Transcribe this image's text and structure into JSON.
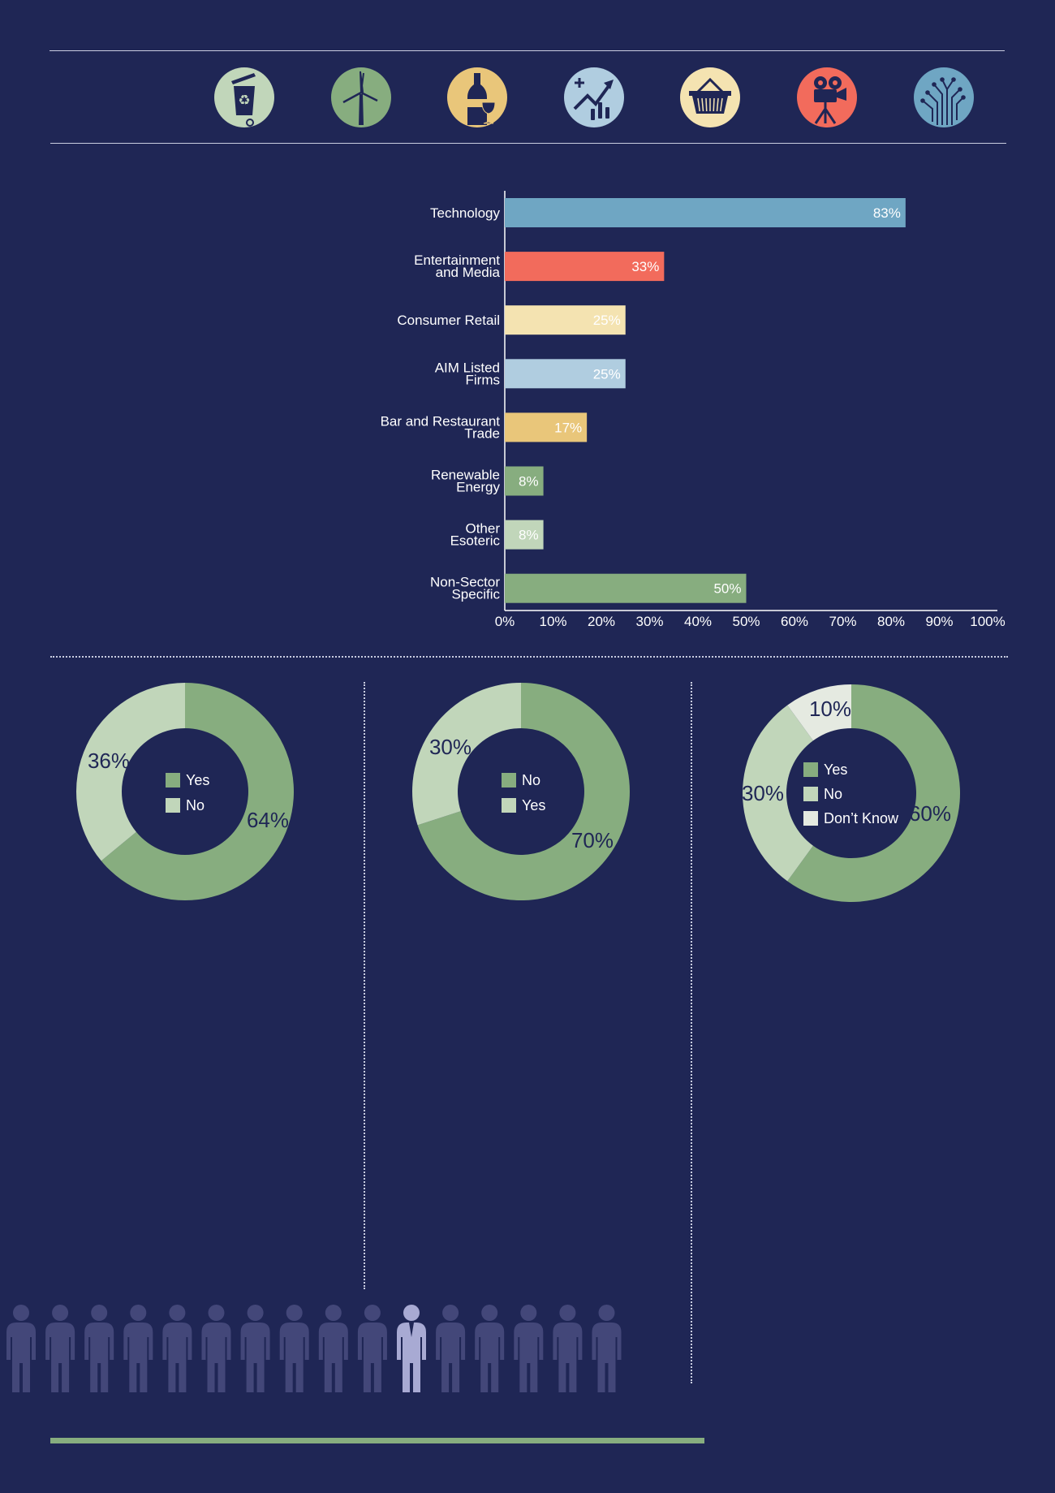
{
  "colors": {
    "background": "#1f2655",
    "navy": "#1f2655",
    "green": "#87ad7f",
    "light_green": "#c1d6ba",
    "pale": "#e5eae1",
    "yellow": "#e9c67a",
    "light_blue": "#b0cde0",
    "blue": "#6fa6c3",
    "coral": "#f26b5c",
    "cream": "#f4e3b1",
    "person": "#434779",
    "person_highlight": "#a8aad3"
  },
  "icons": [
    {
      "name": "recycle-bin-icon",
      "color": "#c1d6ba"
    },
    {
      "name": "wind-turbine-icon",
      "color": "#87ad7f"
    },
    {
      "name": "wine-bottle-icon",
      "color": "#e9c67a"
    },
    {
      "name": "stock-chart-icon",
      "color": "#b0cde0"
    },
    {
      "name": "shopping-basket-icon",
      "color": "#f4e3b1"
    },
    {
      "name": "film-camera-icon",
      "color": "#f26b5c"
    },
    {
      "name": "circuit-board-icon",
      "color": "#6fa6c3"
    }
  ],
  "chart_data": [
    {
      "type": "bar",
      "orientation": "horizontal",
      "categories": [
        [
          "Technology"
        ],
        [
          "Entertainment",
          "and Media"
        ],
        [
          "Consumer Retail"
        ],
        [
          "AIM Listed",
          "Firms"
        ],
        [
          "Bar and Restaurant",
          "Trade"
        ],
        [
          "Renewable",
          "Energy"
        ],
        [
          "Other",
          "Esoteric"
        ],
        [
          "Non-Sector",
          "Specific"
        ]
      ],
      "values": [
        83,
        33,
        25,
        25,
        17,
        8,
        8,
        50
      ],
      "value_labels": [
        "83%",
        "33%",
        "25%",
        "25%",
        "17%",
        "8%",
        "8%",
        "50%"
      ],
      "bar_colors": [
        "#6fa6c3",
        "#f26b5c",
        "#f4e3b1",
        "#b0cde0",
        "#e9c67a",
        "#87ad7f",
        "#c1d6ba",
        "#87ad7f"
      ],
      "xlim": [
        0,
        100
      ],
      "x_ticks": [
        "0%",
        "10%",
        "20%",
        "30%",
        "40%",
        "50%",
        "60%",
        "70%",
        "80%",
        "90%",
        "100%"
      ],
      "grid": false
    },
    {
      "type": "pie",
      "donut": true,
      "slices": [
        {
          "name": "Yes",
          "value": 64,
          "label": "64%",
          "color": "#87ad7f"
        },
        {
          "name": "No",
          "value": 36,
          "label": "36%",
          "color": "#c1d6ba"
        }
      ],
      "legend": [
        "Yes",
        "No"
      ],
      "legend_placement": "center"
    },
    {
      "type": "pie",
      "donut": true,
      "slices": [
        {
          "name": "No",
          "value": 70,
          "label": "70%",
          "color": "#87ad7f"
        },
        {
          "name": "Yes",
          "value": 30,
          "label": "30%",
          "color": "#c1d6ba"
        }
      ],
      "legend": [
        "No",
        "Yes"
      ],
      "legend_placement": "center"
    },
    {
      "type": "pie",
      "donut": true,
      "slices": [
        {
          "name": "Yes",
          "value": 60,
          "label": "60%",
          "color": "#87ad7f"
        },
        {
          "name": "No",
          "value": 30,
          "label": "30%",
          "color": "#c1d6ba"
        },
        {
          "name": "Don’t Know",
          "value": 10,
          "label": "10%",
          "color": "#e5eae1"
        }
      ],
      "legend": [
        "Yes",
        "No",
        "Don’t Know"
      ],
      "legend_placement": "center"
    }
  ],
  "people": {
    "count": 16,
    "highlighted_position": 11
  }
}
